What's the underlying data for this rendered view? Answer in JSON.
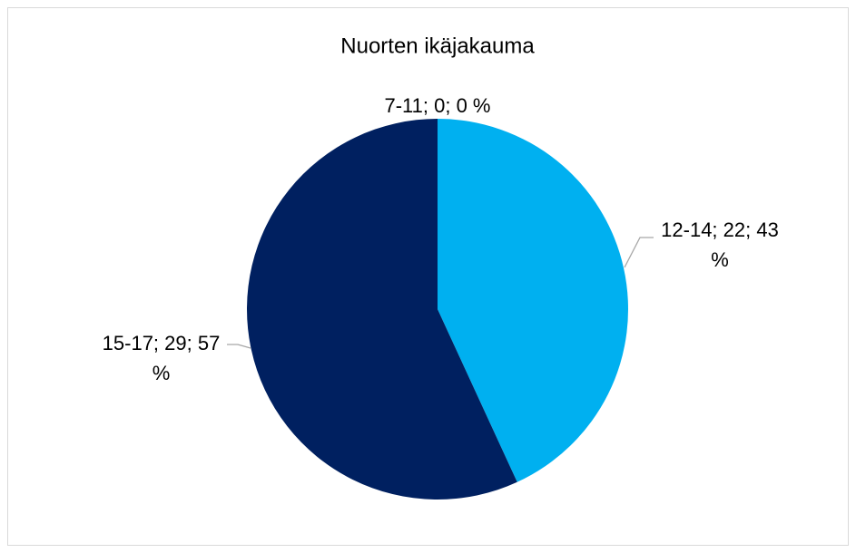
{
  "chart_data": {
    "type": "pie",
    "title": "Nuorten ikäjakauma",
    "categories": [
      "7-11",
      "12-14",
      "15-17"
    ],
    "values": [
      0,
      22,
      29
    ],
    "value_labels": [
      "7-11; 0; 0 %",
      "12-14; 22; 43 %",
      "15-17; 29; 57 %"
    ],
    "colors": [
      "#7f7f7f",
      "#00b0f0",
      "#002060"
    ]
  }
}
